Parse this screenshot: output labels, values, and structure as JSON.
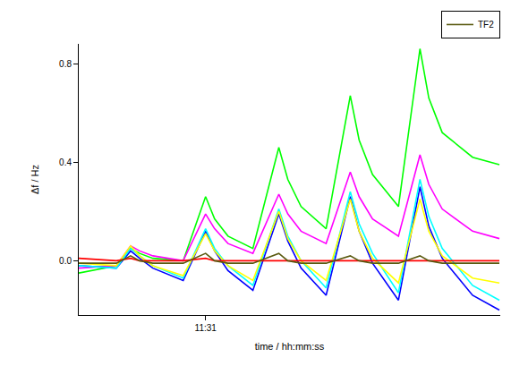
{
  "chart_data": {
    "type": "line",
    "x_label": "time / hh:mm:ss",
    "y_label": "Δf / Hz",
    "x": [
      30.139,
      30.394,
      30.491,
      30.552,
      30.642,
      30.848,
      31.0,
      31.061,
      31.152,
      31.321,
      31.497,
      31.558,
      31.648,
      31.818,
      31.982,
      32.042,
      32.133,
      32.309,
      32.455,
      32.515,
      32.606,
      32.812,
      32.994
    ],
    "series": [
      {
        "color": "#00ff00",
        "values": [
          -0.05,
          -0.02,
          0.05,
          0.03,
          0.01,
          0.0,
          0.26,
          0.17,
          0.1,
          0.05,
          0.46,
          0.33,
          0.22,
          0.13,
          0.67,
          0.49,
          0.35,
          0.22,
          0.86,
          0.66,
          0.52,
          0.42,
          0.39
        ]
      },
      {
        "color": "#ff00ff",
        "values": [
          -0.03,
          -0.02,
          0.06,
          0.04,
          0.02,
          0.0,
          0.19,
          0.13,
          0.07,
          0.03,
          0.27,
          0.19,
          0.12,
          0.07,
          0.36,
          0.26,
          0.17,
          0.1,
          0.43,
          0.31,
          0.21,
          0.12,
          0.09
        ]
      },
      {
        "color": "#0000ff",
        "values": [
          -0.02,
          -0.03,
          0.04,
          0.01,
          -0.03,
          -0.08,
          0.12,
          0.04,
          -0.04,
          -0.12,
          0.19,
          0.08,
          -0.03,
          -0.14,
          0.26,
          0.12,
          -0.01,
          -0.16,
          0.3,
          0.14,
          0.01,
          -0.14,
          -0.2
        ]
      },
      {
        "color": "#00ffff",
        "values": [
          -0.02,
          -0.03,
          0.05,
          0.02,
          -0.02,
          -0.07,
          0.13,
          0.05,
          -0.02,
          -0.1,
          0.21,
          0.1,
          0.0,
          -0.11,
          0.28,
          0.15,
          0.03,
          -0.13,
          0.33,
          0.18,
          0.05,
          -0.1,
          -0.16
        ]
      },
      {
        "color": "#ffff00",
        "values": [
          -0.01,
          -0.02,
          0.06,
          0.02,
          -0.02,
          -0.06,
          0.11,
          0.04,
          -0.02,
          -0.08,
          0.2,
          0.09,
          0.0,
          -0.08,
          0.25,
          0.12,
          0.01,
          -0.09,
          0.25,
          0.12,
          0.02,
          -0.07,
          -0.09
        ]
      },
      {
        "color": "#ff0000",
        "values": [
          0.01,
          0.0,
          0.01,
          0.0,
          0.0,
          0.0,
          0.01,
          0.0,
          0.0,
          0.0,
          0.0,
          0.0,
          0.0,
          0.0,
          0.0,
          0.0,
          0.0,
          0.0,
          0.0,
          0.0,
          0.0,
          0.0,
          0.0
        ]
      },
      {
        "name": "TF2",
        "color": "#5a5a10",
        "values": [
          -0.01,
          -0.01,
          0.02,
          0.0,
          -0.01,
          -0.01,
          0.03,
          0.0,
          -0.01,
          -0.01,
          0.03,
          0.0,
          -0.01,
          -0.01,
          0.02,
          0.0,
          -0.01,
          -0.01,
          0.02,
          0.0,
          -0.01,
          -0.01,
          -0.01
        ]
      }
    ],
    "xlim": [
      30.139,
      33.0
    ],
    "xticks": [
      {
        "value": 31,
        "label": "11:31"
      }
    ],
    "ylim": [
      -0.22,
      0.88
    ],
    "yticks": [
      {
        "value": 0,
        "label": "0.0"
      },
      0.4,
      0.8
    ],
    "grid": false,
    "legend": "top right"
  }
}
